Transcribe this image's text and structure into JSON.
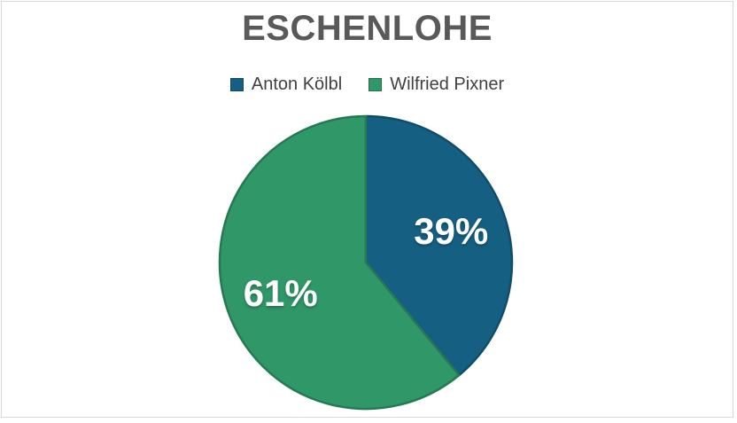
{
  "window": {
    "background": "#FFFFFF",
    "frame_border_color": "#D8D8D8"
  },
  "chart_data": {
    "type": "pie",
    "title": "ESCHENLOHE",
    "categories": [
      "Anton Kölbl",
      "Wilfried Pixner"
    ],
    "values": [
      39,
      61
    ],
    "data_labels": [
      "39%",
      "61%"
    ],
    "colors": [
      "#156082",
      "#2F9768"
    ],
    "start_angle_deg": 0,
    "direction": "clockwise",
    "legend_position": "top",
    "title_color": "#595959",
    "legend_text_color": "#404040",
    "data_label_color": "#FFFFFF"
  }
}
